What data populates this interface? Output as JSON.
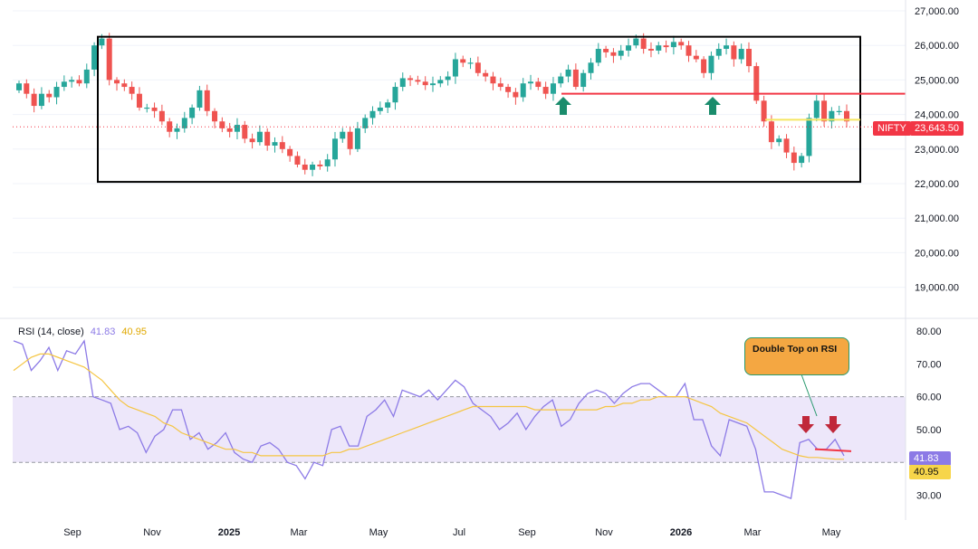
{
  "symbol": "NIFTY",
  "last_price": "23,643.50",
  "rsi": {
    "label": "RSI (14, close)",
    "value": "41.83",
    "ma_value": "40.95",
    "upper_band": 60,
    "lower_band": 40
  },
  "annotation": {
    "text": "Double Top on RSI"
  },
  "colors": {
    "up": "#26a69a",
    "down": "#ef5350",
    "resistance": "#f23645",
    "support": "#f5e663",
    "rsi_line": "#8c7ae6",
    "rsi_ma": "#f5c542",
    "band_fill": "#ede7fa",
    "arrow_up": "#1a8c6c",
    "arrow_down": "#c0283a",
    "range_box": "#000000"
  },
  "chart_data": [
    {
      "type": "candlestick",
      "symbol": "NIFTY",
      "interval": "weekly",
      "ylim": [
        18500,
        27000
      ],
      "y_ticks": [
        "27,000.00",
        "26,000.00",
        "25,000.00",
        "24,000.00",
        "23,000.00",
        "22,000.00",
        "21,000.00",
        "20,000.00",
        "19,000.00"
      ],
      "close_estimates": [
        24900,
        24600,
        24250,
        24600,
        24500,
        24800,
        24950,
        25000,
        24900,
        25300,
        26000,
        26200,
        25000,
        24900,
        24800,
        24600,
        24200,
        24200,
        24100,
        23800,
        23500,
        23600,
        23900,
        24200,
        24700,
        24100,
        23800,
        23600,
        23500,
        23700,
        23300,
        23200,
        23500,
        23100,
        23200,
        23000,
        22800,
        22550,
        22400,
        22550,
        22500,
        22700,
        23300,
        23500,
        23000,
        23600,
        23900,
        24100,
        24200,
        24350,
        24800,
        25050,
        25000,
        24950,
        24850,
        24900,
        25000,
        25100,
        25600,
        25500,
        25500,
        25200,
        25100,
        24900,
        24800,
        24650,
        24500,
        24900,
        24950,
        24800,
        24600,
        24900,
        25100,
        25300,
        24800,
        25200,
        25500,
        25900,
        25800,
        25700,
        25850,
        26000,
        26200,
        25900,
        25850,
        26000,
        25950,
        26100,
        26000,
        25700,
        25600,
        25200,
        25700,
        25900,
        26000,
        25600,
        25900,
        25400,
        24400,
        23800,
        23200,
        23300,
        22900,
        22600,
        22800,
        23900,
        24400,
        23800,
        24100,
        24100,
        23800
      ],
      "last_close": 23643.5,
      "range_box": {
        "high": 26250,
        "low": 22050
      },
      "resistance": 24600,
      "support": 23850,
      "buy_arrows_at": [
        "Oct",
        "Jan 2026"
      ]
    },
    {
      "type": "line",
      "title": "RSI (14, close)",
      "ylim": [
        25,
        82
      ],
      "y_ticks": [
        "80.00",
        "70.00",
        "60.00",
        "50.00",
        "40.00",
        "30.00"
      ],
      "x_ticks": [
        "Sep",
        "Nov",
        "2025",
        "Mar",
        "May",
        "Jul",
        "Sep",
        "Nov",
        "2026",
        "Mar",
        "May"
      ],
      "series": [
        {
          "name": "RSI",
          "values": [
            77,
            76,
            68,
            71,
            75,
            68,
            74,
            73,
            77,
            60,
            59,
            58,
            50,
            51,
            49,
            43,
            48,
            50,
            56,
            56,
            47,
            49,
            44,
            46,
            49,
            43,
            41,
            40,
            45,
            46,
            44,
            40,
            39,
            35,
            40,
            39,
            50,
            51,
            45,
            45,
            54,
            56,
            59,
            54,
            62,
            61,
            60,
            62,
            59,
            62,
            65,
            63,
            58,
            56,
            54,
            50,
            52,
            55,
            50,
            54,
            57,
            59,
            51,
            53,
            58,
            61,
            62,
            61,
            58,
            61,
            63,
            64,
            64,
            62,
            60,
            60,
            64,
            53,
            53,
            45,
            42,
            53,
            52,
            51,
            44,
            31,
            31,
            30,
            29,
            46,
            47,
            44,
            44,
            47,
            42
          ]
        },
        {
          "name": "RSI-MA",
          "values": [
            68,
            70,
            72,
            73,
            73,
            72,
            71,
            70,
            69,
            67,
            65,
            62,
            59,
            57,
            56,
            55,
            54,
            52,
            51,
            49,
            48,
            47,
            46,
            45,
            44,
            44,
            43,
            43,
            42,
            42,
            42,
            42,
            42,
            42,
            42,
            42,
            43,
            43,
            44,
            44,
            45,
            46,
            47,
            48,
            49,
            50,
            51,
            52,
            53,
            54,
            55,
            56,
            57,
            57,
            57,
            57,
            57,
            57,
            57,
            56,
            56,
            56,
            56,
            56,
            56,
            56,
            56,
            57,
            57,
            58,
            58,
            59,
            59,
            60,
            60,
            60,
            60,
            59,
            58,
            57,
            55,
            54,
            53,
            52,
            50,
            48,
            46,
            44,
            43,
            42,
            41.5,
            41.5,
            41.2,
            41.0,
            40.95
          ]
        }
      ],
      "bands": [
        40,
        60
      ],
      "annotation": "Double Top on RSI",
      "down_arrows_count": 2
    }
  ]
}
